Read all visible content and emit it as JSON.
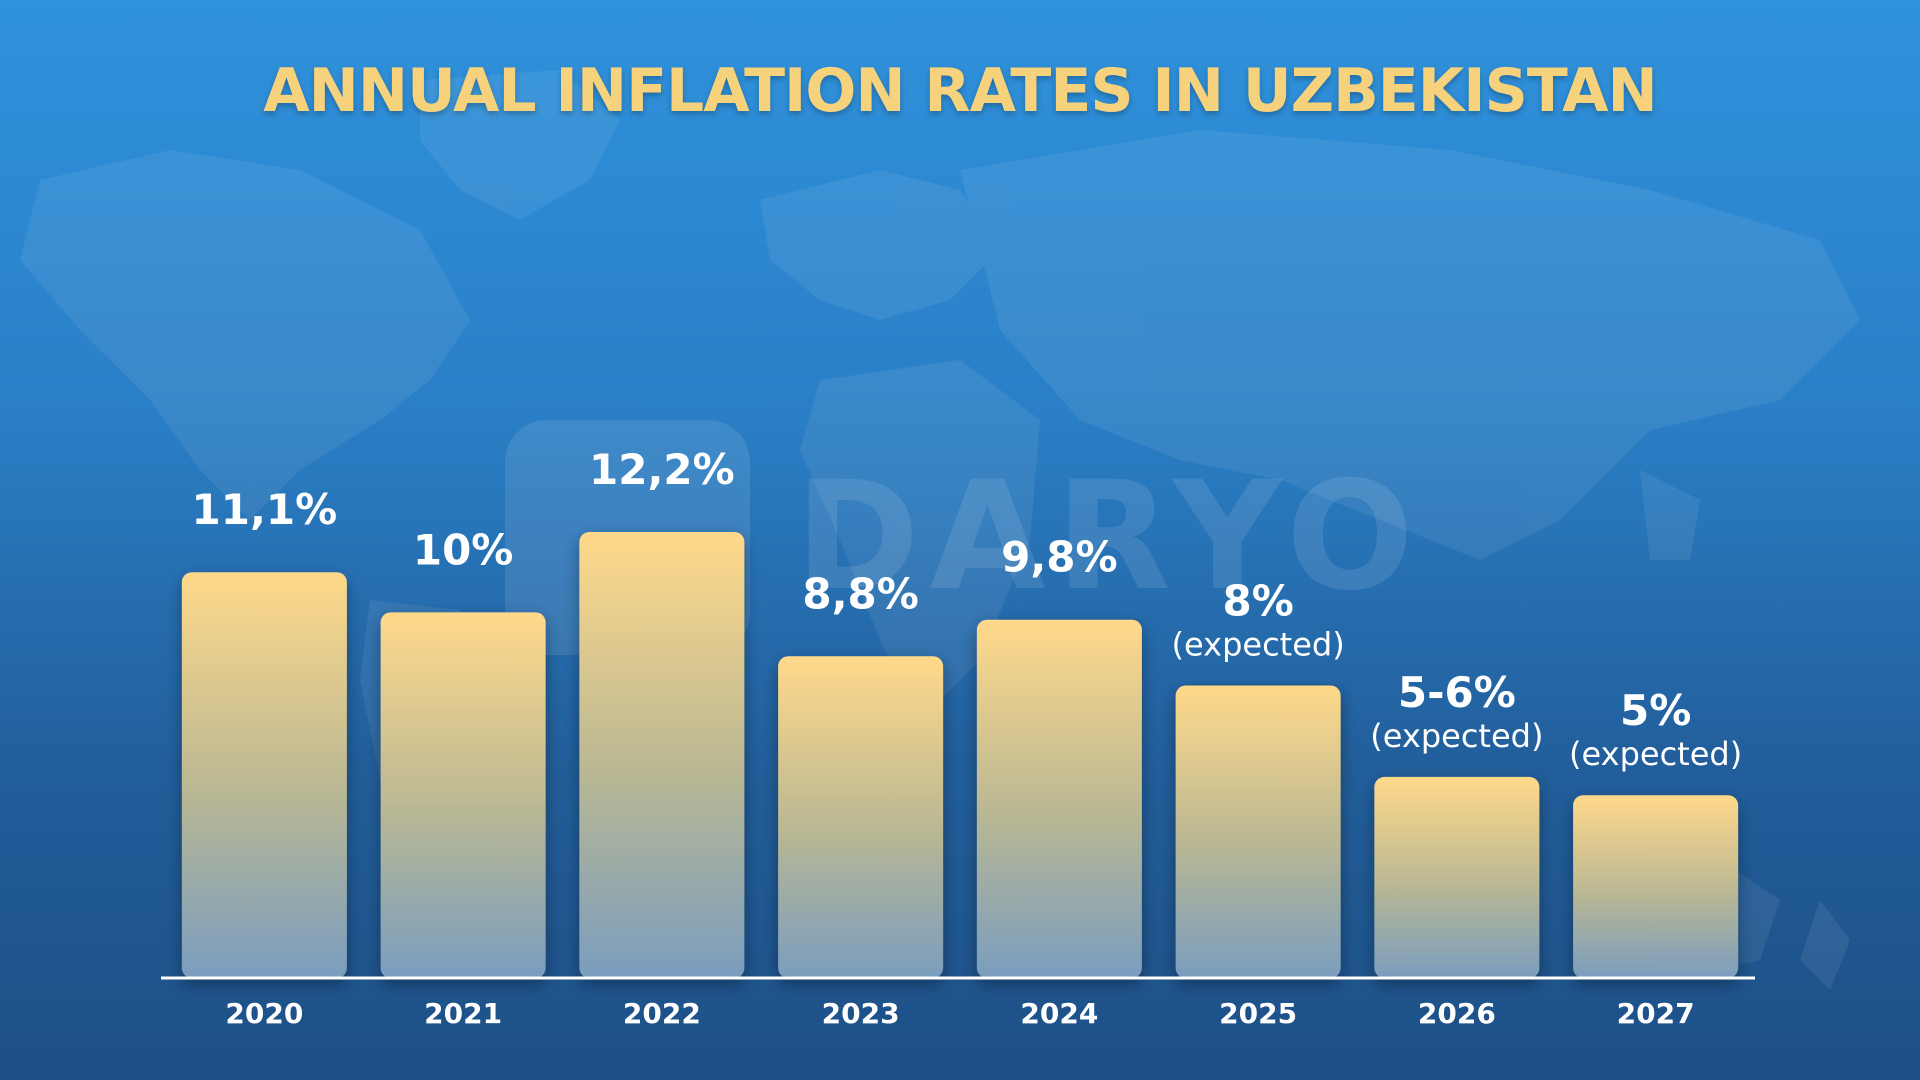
{
  "title": "ANNUAL INFLATION RATES IN UZBEKISTAN",
  "watermark": "DARYO",
  "colors": {
    "title": "#f7d27d",
    "bar_top": "#ffd98a",
    "bar_bottom": "#7a9dbf",
    "text": "#ffffff"
  },
  "chart_data": {
    "type": "bar",
    "title": "ANNUAL INFLATION RATES IN UZBEKISTAN",
    "xlabel": "",
    "ylabel": "",
    "ylim": [
      0,
      12.2
    ],
    "grid": false,
    "categories": [
      "2020",
      "2021",
      "2022",
      "2023",
      "2024",
      "2025",
      "2026",
      "2027"
    ],
    "values": [
      11.1,
      10.0,
      12.2,
      8.8,
      9.8,
      8.0,
      5.5,
      5.0
    ],
    "labels": [
      "11,1%",
      "10%",
      "12,2%",
      "8,8%",
      "9,8%",
      "8%",
      "5-6%",
      "5%"
    ],
    "notes": [
      "",
      "",
      "",
      "",
      "",
      "(expected)",
      "(expected)",
      "(expected)"
    ]
  }
}
